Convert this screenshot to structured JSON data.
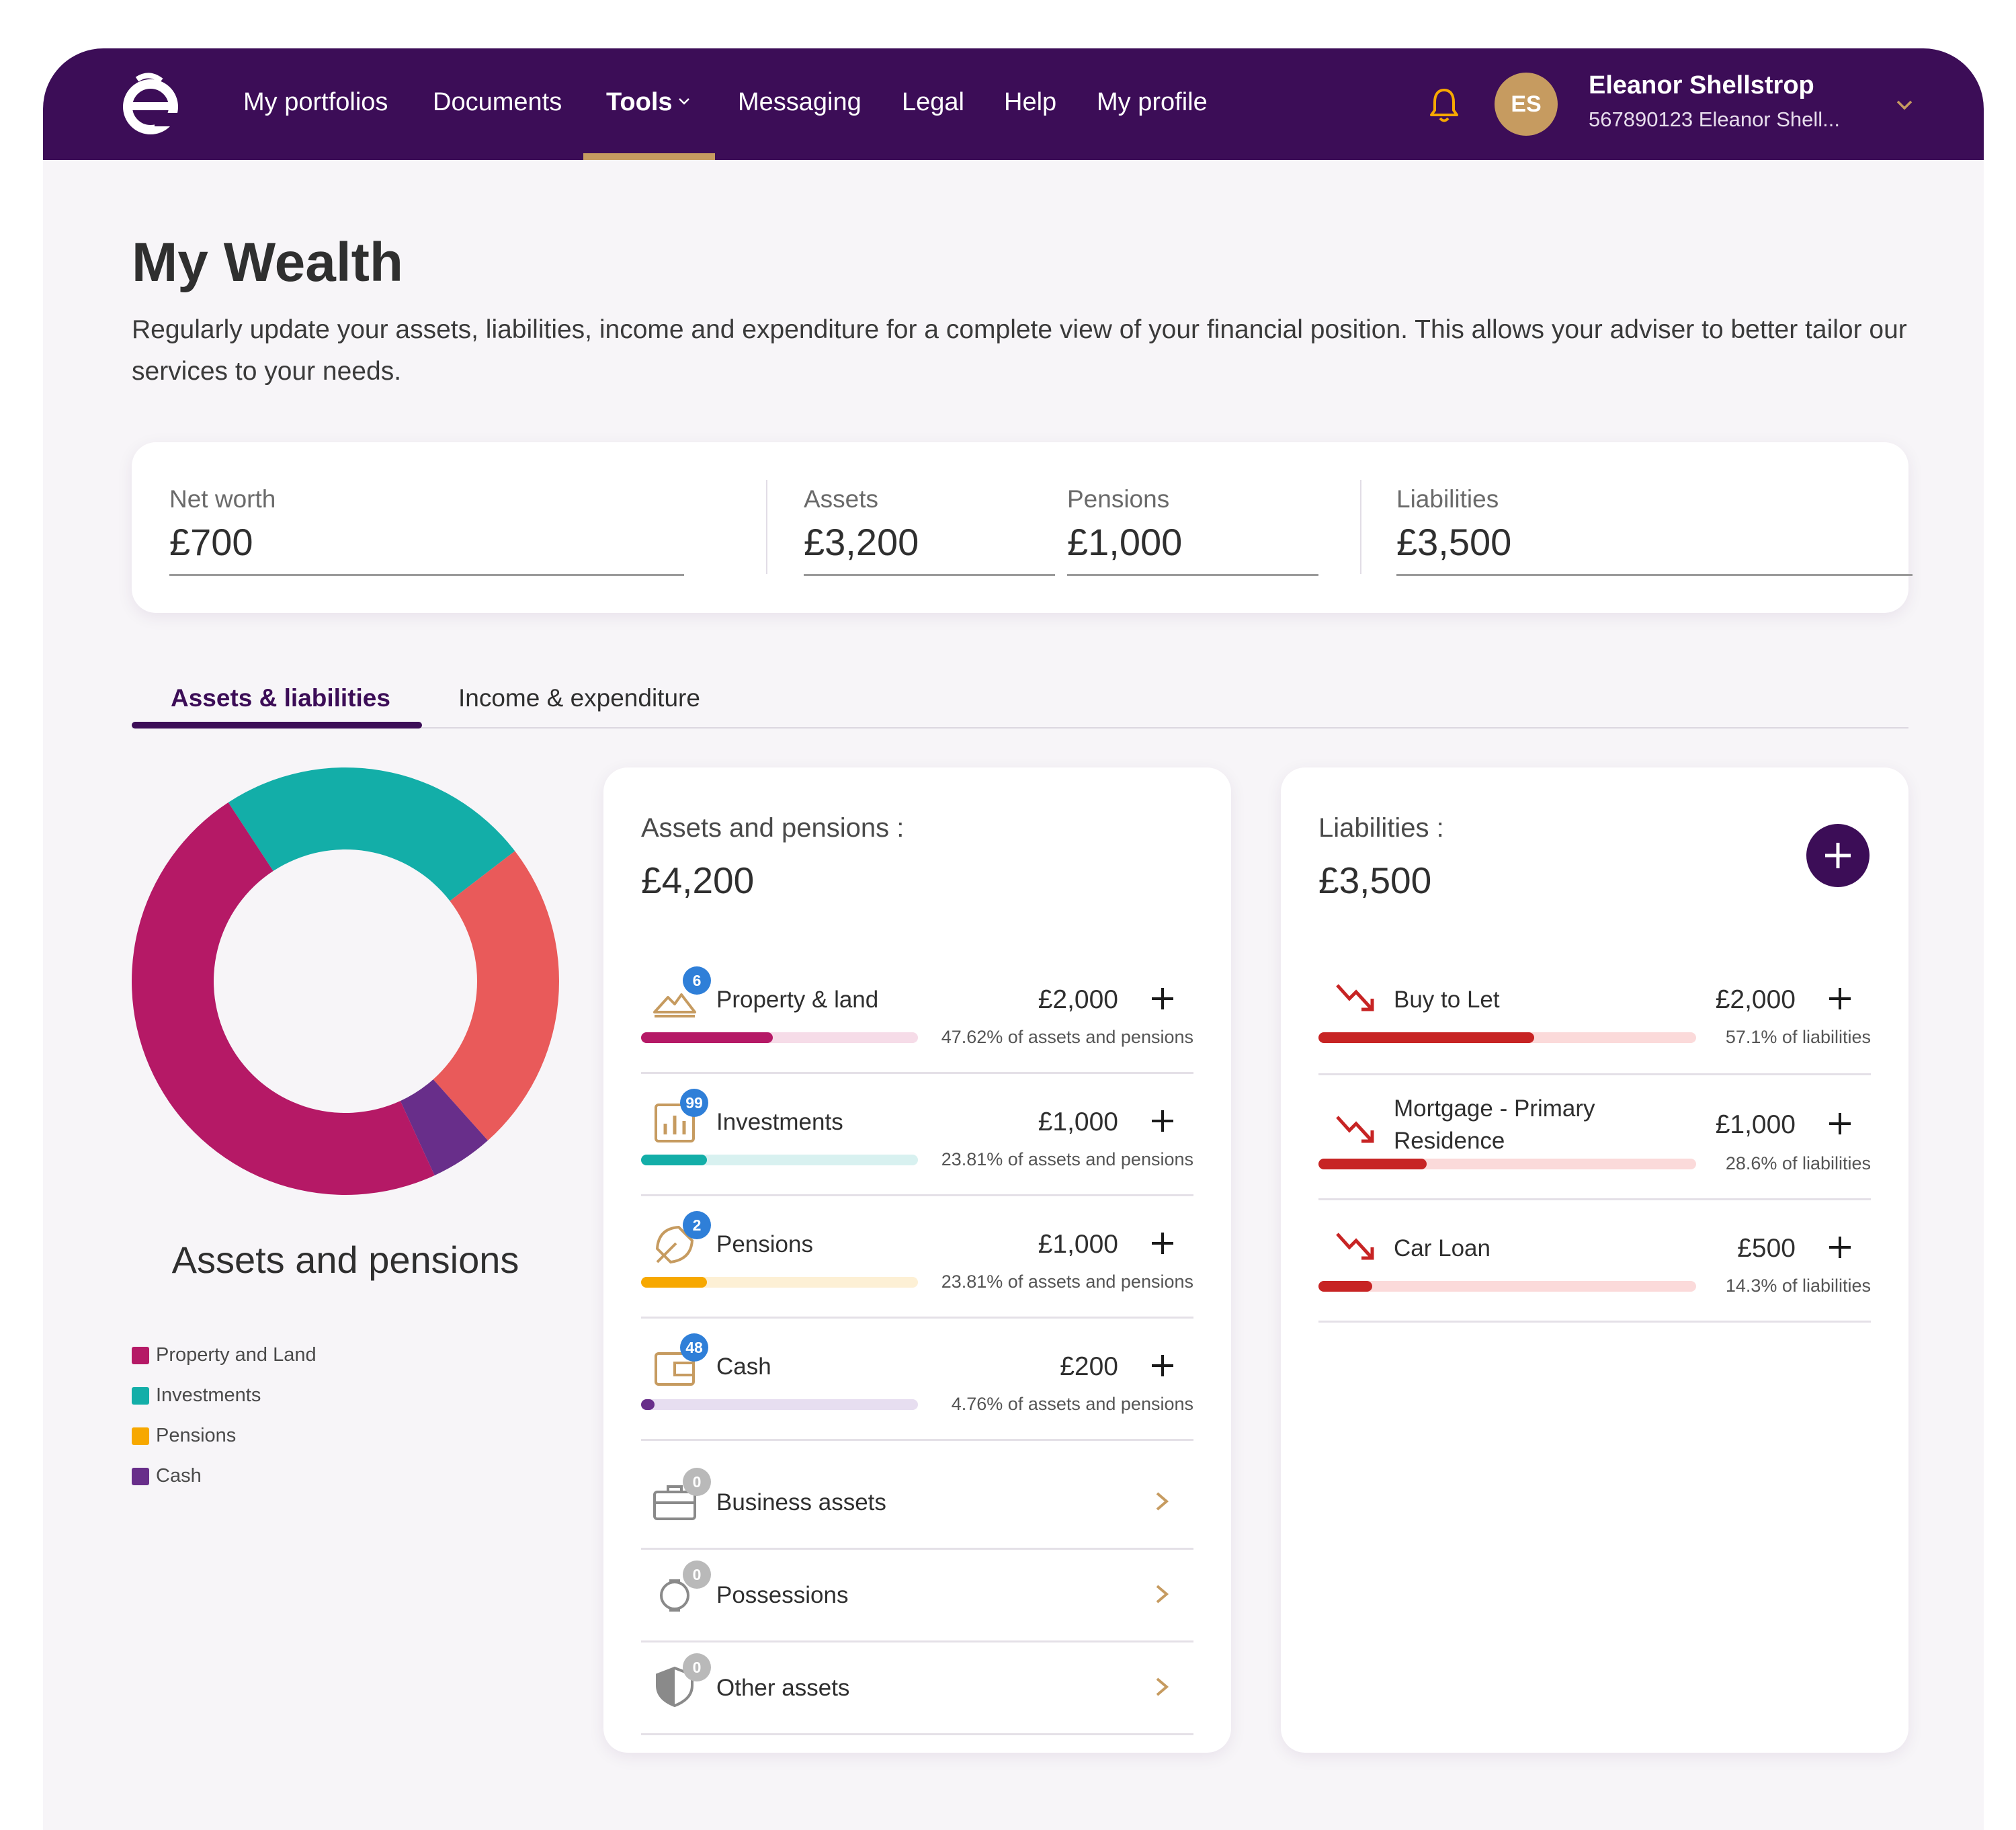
{
  "nav": {
    "items": [
      "My portfolios",
      "Documents",
      "Tools",
      "Messaging",
      "Legal",
      "Help",
      "My profile"
    ],
    "active": "Tools",
    "user": {
      "initials": "ES",
      "name": "Eleanor Shellstrop",
      "sub": "567890123 Eleanor Shell..."
    }
  },
  "page": {
    "title": "My Wealth",
    "description": "Regularly update your assets, liabilities, income and expenditure for a complete view of your financial position. This allows your adviser to better tailor our services to your needs."
  },
  "summary": {
    "net_worth": {
      "label": "Net worth",
      "value": "£700"
    },
    "assets": {
      "label": "Assets",
      "value": "£3,200"
    },
    "pensions": {
      "label": "Pensions",
      "value": "£1,000"
    },
    "liabilities": {
      "label": "Liabilities",
      "value": "£3,500"
    }
  },
  "tabs": [
    "Assets & liabilities",
    "Income & expenditure"
  ],
  "chart": {
    "title": "Assets and pensions",
    "legend": [
      {
        "label": "Property and Land",
        "color": "#b51966"
      },
      {
        "label": "Investments",
        "color": "#13aea8"
      },
      {
        "label": "Pensions",
        "color": "#f7a800"
      },
      {
        "label": "Cash",
        "color": "#682e8a"
      }
    ]
  },
  "chart_data": {
    "type": "pie",
    "title": "Assets and pensions",
    "categories": [
      "Property and Land",
      "Investments",
      "Pensions",
      "Cash"
    ],
    "values": [
      2000,
      1000,
      1000,
      200
    ],
    "slice_colors": [
      "#b51966",
      "#13aea8",
      "#e95a5a",
      "#682e8a"
    ],
    "legend_colors": [
      "#b51966",
      "#13aea8",
      "#f7a800",
      "#682e8a"
    ],
    "donut": true,
    "legend_position": "bottom-left"
  },
  "assets_card": {
    "title": "Assets and pensions :",
    "total": "£4,200",
    "rows": [
      {
        "label": "Property & land",
        "amount": "£2,000",
        "badge": "6",
        "pct": "47.62% of assets and pensions",
        "fraction": 0.4762,
        "fill": "#b51966",
        "track": "#f6dce8",
        "icon": "property-icon"
      },
      {
        "label": "Investments",
        "amount": "£1,000",
        "badge": "99",
        "pct": "23.81% of assets and pensions",
        "fraction": 0.2381,
        "fill": "#13aea8",
        "track": "#d8f1f0",
        "icon": "investments-icon"
      },
      {
        "label": "Pensions",
        "amount": "£1,000",
        "badge": "2",
        "pct": "23.81% of assets and pensions",
        "fraction": 0.2381,
        "fill": "#f7a800",
        "track": "#fdf0d5",
        "icon": "pensions-icon"
      },
      {
        "label": "Cash",
        "amount": "£200",
        "badge": "48",
        "pct": "4.76% of assets and pensions",
        "fraction": 0.0476,
        "fill": "#682e8a",
        "track": "#e7def0",
        "icon": "cash-icon"
      }
    ],
    "empty_rows": [
      {
        "label": "Business assets",
        "badge": "0",
        "icon": "business-assets-icon"
      },
      {
        "label": "Possessions",
        "badge": "0",
        "icon": "possessions-icon"
      },
      {
        "label": "Other assets",
        "badge": "0",
        "icon": "other-assets-icon"
      }
    ]
  },
  "liab_card": {
    "title": "Liabilities :",
    "total": "£3,500",
    "rows": [
      {
        "label": "Buy to Let",
        "amount": "£2,000",
        "pct": "57.1% of liabilities",
        "fraction": 0.571
      },
      {
        "label_1": "Mortgage - Primary",
        "label_2": "Residence",
        "amount": "£1,000",
        "pct": "28.6% of liabilities",
        "fraction": 0.286
      },
      {
        "label": "Car Loan",
        "amount": "£500",
        "pct": "14.3% of liabilities",
        "fraction": 0.143
      }
    ],
    "fill": "#c72424",
    "track": "#fbdada"
  },
  "colors": {
    "brand": "#3c0d57",
    "accent": "#c69b60"
  }
}
